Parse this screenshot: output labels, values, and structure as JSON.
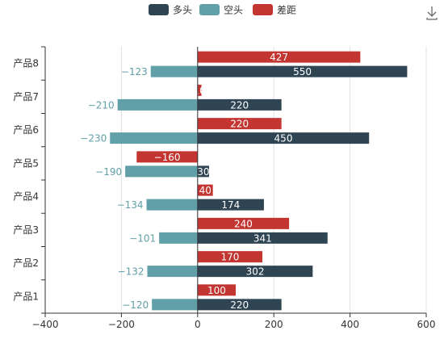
{
  "chart_data": {
    "type": "bar",
    "orientation": "horizontal",
    "categories": [
      "产品1",
      "产品2",
      "产品3",
      "产品4",
      "产品5",
      "产品6",
      "产品7",
      "产品8"
    ],
    "series": [
      {
        "name": "多头",
        "color": "#2f4554",
        "values": [
          220,
          302,
          341,
          174,
          30,
          450,
          220,
          550
        ]
      },
      {
        "name": "空头",
        "color": "#61a0a8",
        "values": [
          -120,
          -132,
          -101,
          -134,
          -190,
          -230,
          -210,
          -123
        ]
      },
      {
        "name": "差距",
        "color": "#c23531",
        "values": [
          100,
          170,
          240,
          40,
          -160,
          220,
          10,
          427
        ]
      }
    ],
    "xlim": [
      -400,
      600
    ],
    "xticks": [
      -400,
      -200,
      0,
      200,
      400,
      600
    ],
    "grid": true,
    "legend_position": "top-center",
    "data_labels": true
  },
  "toolbar": {
    "download_icon": "download-icon"
  }
}
